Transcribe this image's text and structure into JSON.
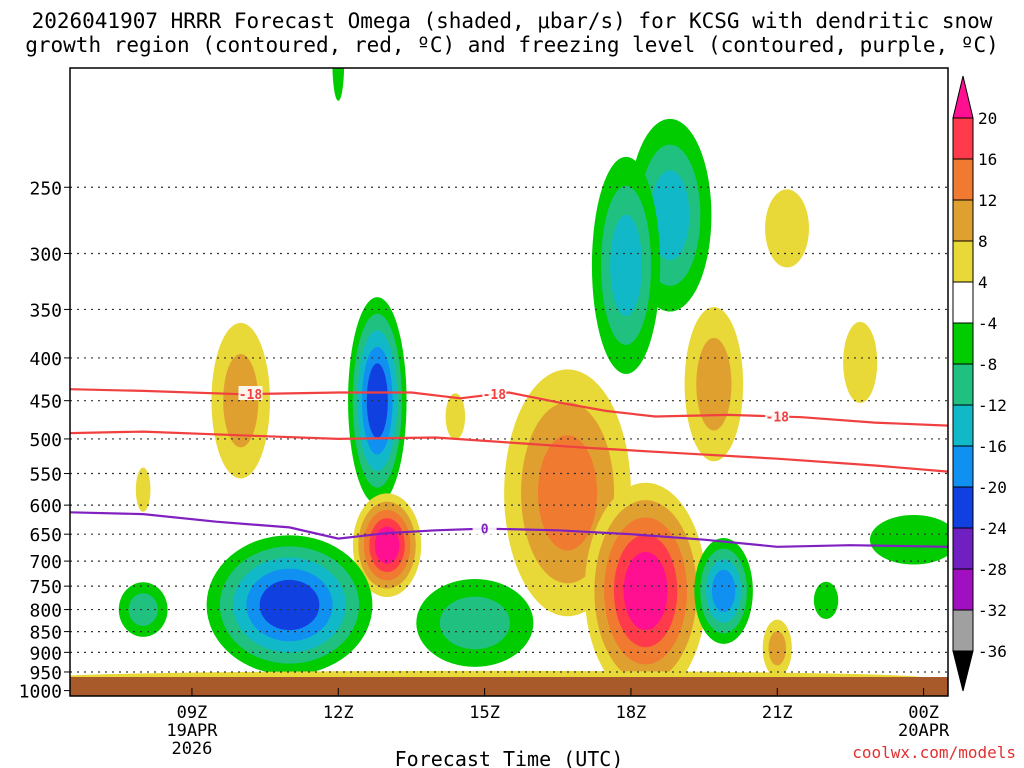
{
  "chart_data": {
    "type": "heatmap",
    "title_line1": "2026041907 HRRR Forecast Omega (shaded, μbar/s) for KCSG with dendritic snow",
    "title_line2": "growth region (contoured, red, ºC) and freezing level (contoured, purple, ºC)",
    "xlabel": "Forecast Time (UTC)",
    "ylabel": "",
    "credit": "coolwx.com/models",
    "x_range_hours": [
      6.5,
      24.5
    ],
    "y_range_hpa": [
      1015,
      180
    ],
    "y_ticks": [
      {
        "v": 250,
        "label": "250"
      },
      {
        "v": 300,
        "label": "300"
      },
      {
        "v": 350,
        "label": "350"
      },
      {
        "v": 400,
        "label": "400"
      },
      {
        "v": 450,
        "label": "450"
      },
      {
        "v": 500,
        "label": "500"
      },
      {
        "v": 550,
        "label": "550"
      },
      {
        "v": 600,
        "label": "600"
      },
      {
        "v": 650,
        "label": "650"
      },
      {
        "v": 700,
        "label": "700"
      },
      {
        "v": 750,
        "label": "750"
      },
      {
        "v": 800,
        "label": "800"
      },
      {
        "v": 850,
        "label": "850"
      },
      {
        "v": 900,
        "label": "900"
      },
      {
        "v": 950,
        "label": "950"
      },
      {
        "v": 1000,
        "label": "1000"
      }
    ],
    "x_ticks": [
      {
        "h": 9,
        "lines": [
          "09Z",
          "19APR",
          "2026"
        ]
      },
      {
        "h": 12,
        "lines": [
          "12Z"
        ]
      },
      {
        "h": 15,
        "lines": [
          "15Z"
        ]
      },
      {
        "h": 18,
        "lines": [
          "18Z"
        ]
      },
      {
        "h": 21,
        "lines": [
          "21Z"
        ]
      },
      {
        "h": 24,
        "lines": [
          "00Z",
          "20APR"
        ]
      }
    ],
    "colorbar": {
      "labels": [
        "20",
        "16",
        "12",
        "8",
        "4",
        "-4",
        "-8",
        "-12",
        "-16",
        "-20",
        "-24",
        "-28",
        "-32",
        "-36"
      ],
      "colors": [
        "#ff3a4a",
        "#f07a30",
        "#e0a030",
        "#e8d838",
        "#ffffff",
        "#00cc00",
        "#20c080",
        "#10b8c8",
        "#1090f0",
        "#1040e0",
        "#7020c0",
        "#a010c0",
        "#a0a0a0"
      ],
      "top_triangle": "#ff1090",
      "bottom_triangle": "#000000"
    },
    "omega_features": [
      {
        "h": 12.0,
        "p": 178,
        "rh": 0.12,
        "rp": 18,
        "levels": [
          -4
        ]
      },
      {
        "h": 18.8,
        "p": 270,
        "rh": 0.85,
        "rp": 70,
        "levels": [
          -4,
          -8,
          -12
        ]
      },
      {
        "h": 17.9,
        "p": 310,
        "rh": 0.7,
        "rp": 90,
        "levels": [
          -4,
          -8,
          -12
        ]
      },
      {
        "h": 21.2,
        "p": 280,
        "rh": 0.45,
        "rp": 30,
        "levels": [
          4
        ]
      },
      {
        "h": 22.7,
        "p": 405,
        "rh": 0.35,
        "rp": 45,
        "levels": [
          4
        ]
      },
      {
        "h": 10.0,
        "p": 450,
        "rh": 0.6,
        "rp": 95,
        "levels": [
          4,
          8
        ]
      },
      {
        "h": 12.8,
        "p": 450,
        "rh": 0.6,
        "rp": 125,
        "levels": [
          -4,
          -8,
          -12,
          -16,
          -20
        ]
      },
      {
        "h": 14.4,
        "p": 470,
        "rh": 0.2,
        "rp": 30,
        "levels": [
          4
        ]
      },
      {
        "h": 16.7,
        "p": 580,
        "rh": 1.3,
        "rp": 190,
        "levels": [
          4,
          8,
          12
        ]
      },
      {
        "h": 19.7,
        "p": 430,
        "rh": 0.6,
        "rp": 90,
        "levels": [
          4,
          8
        ]
      },
      {
        "h": 18.3,
        "p": 760,
        "rh": 1.25,
        "rp": 220,
        "levels": [
          4,
          8,
          12,
          16,
          20
        ]
      },
      {
        "h": 13.0,
        "p": 670,
        "rh": 0.7,
        "rp": 95,
        "levels": [
          4,
          8,
          12,
          16,
          20
        ]
      },
      {
        "h": 11.0,
        "p": 790,
        "rh": 1.7,
        "rp": 150,
        "levels": [
          -4,
          -8,
          -12,
          -16,
          -20
        ]
      },
      {
        "h": 8.0,
        "p": 800,
        "rh": 0.5,
        "rp": 60,
        "levels": [
          -4,
          -8
        ]
      },
      {
        "h": 14.8,
        "p": 830,
        "rh": 1.2,
        "rp": 100,
        "levels": [
          -4,
          -8
        ]
      },
      {
        "h": 19.9,
        "p": 760,
        "rh": 0.6,
        "rp": 110,
        "levels": [
          -4,
          -8,
          -12,
          -16
        ]
      },
      {
        "h": 22.0,
        "p": 780,
        "rh": 0.25,
        "rp": 40,
        "levels": [
          -4
        ]
      },
      {
        "h": 23.8,
        "p": 660,
        "rh": 0.9,
        "rp": 45,
        "levels": [
          -4
        ]
      },
      {
        "h": 21.0,
        "p": 890,
        "rh": 0.3,
        "rp": 70,
        "levels": [
          4,
          8
        ]
      },
      {
        "h": 8.0,
        "p": 575,
        "rh": 0.15,
        "rp": 35,
        "levels": [
          4
        ]
      },
      {
        "h": 15.0,
        "p": 965,
        "rh": 9.0,
        "rp": 18,
        "levels": [
          4
        ]
      }
    ],
    "dgz_top_line": {
      "label": "-18",
      "points": [
        [
          6.5,
          436
        ],
        [
          8.0,
          438
        ],
        [
          10.0,
          442
        ],
        [
          12.0,
          440
        ],
        [
          13.5,
          440
        ],
        [
          14.5,
          447
        ],
        [
          15.5,
          440
        ],
        [
          16.5,
          452
        ],
        [
          17.5,
          463
        ],
        [
          18.5,
          470
        ],
        [
          20.0,
          468
        ],
        [
          21.5,
          471
        ],
        [
          23.0,
          478
        ],
        [
          24.5,
          482
        ]
      ],
      "label_positions": [
        10.2,
        15.2,
        21.0
      ]
    },
    "dgz_bottom_line": {
      "label": "",
      "points": [
        [
          6.5,
          492
        ],
        [
          8.0,
          490
        ],
        [
          10.0,
          495
        ],
        [
          12.0,
          500
        ],
        [
          14.0,
          498
        ],
        [
          15.5,
          505
        ],
        [
          17.0,
          512
        ],
        [
          19.0,
          520
        ],
        [
          21.0,
          528
        ],
        [
          23.0,
          538
        ],
        [
          24.5,
          547
        ]
      ]
    },
    "freezing_line": {
      "label": "0",
      "points": [
        [
          6.5,
          612
        ],
        [
          8.0,
          615
        ],
        [
          9.5,
          628
        ],
        [
          11.0,
          638
        ],
        [
          12.0,
          658
        ],
        [
          13.0,
          648
        ],
        [
          14.0,
          643
        ],
        [
          15.0,
          640
        ],
        [
          16.5,
          643
        ],
        [
          18.0,
          650
        ],
        [
          19.5,
          660
        ],
        [
          21.0,
          673
        ],
        [
          22.5,
          670
        ],
        [
          24.5,
          673
        ]
      ],
      "label_positions": [
        15.0
      ]
    }
  }
}
